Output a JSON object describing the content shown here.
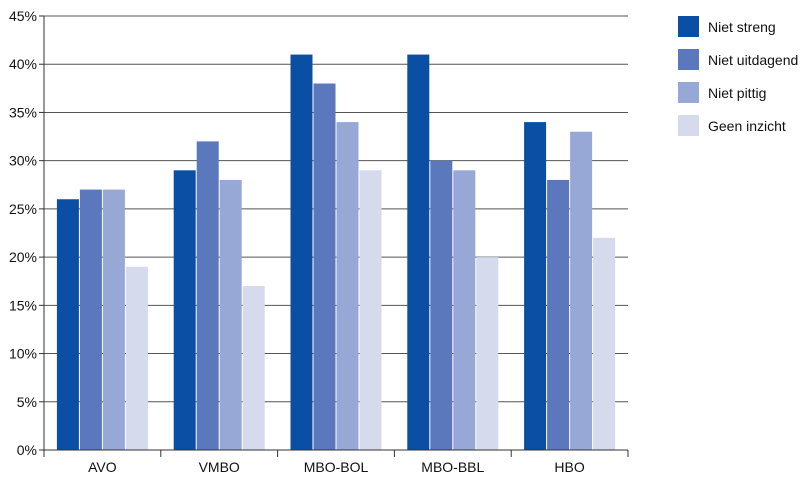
{
  "chart_data": {
    "type": "bar",
    "categories": [
      "AVO",
      "VMBO",
      "MBO-BOL",
      "MBO-BBL",
      "HBO"
    ],
    "series": [
      {
        "name": "Niet streng",
        "color": "#0a4fa3",
        "values": [
          26,
          29,
          41,
          41,
          34
        ]
      },
      {
        "name": "Niet uitdagend",
        "color": "#5b78bd",
        "values": [
          27,
          32,
          38,
          30,
          28
        ]
      },
      {
        "name": "Niet pittig",
        "color": "#98a8d6",
        "values": [
          27,
          28,
          34,
          29,
          33
        ]
      },
      {
        "name": "Geen inzicht",
        "color": "#d5daed",
        "values": [
          19,
          17,
          29,
          20,
          22
        ]
      }
    ],
    "ylim": [
      0,
      45
    ],
    "yticks": [
      "0%",
      "5%",
      "10%",
      "15%",
      "20%",
      "25%",
      "30%",
      "35%",
      "40%",
      "45%"
    ],
    "ytick_values": [
      0,
      5,
      10,
      15,
      20,
      25,
      30,
      35,
      40,
      45
    ],
    "grid": true,
    "legend_position": "right-top",
    "title": "",
    "xlabel": "",
    "ylabel": ""
  }
}
